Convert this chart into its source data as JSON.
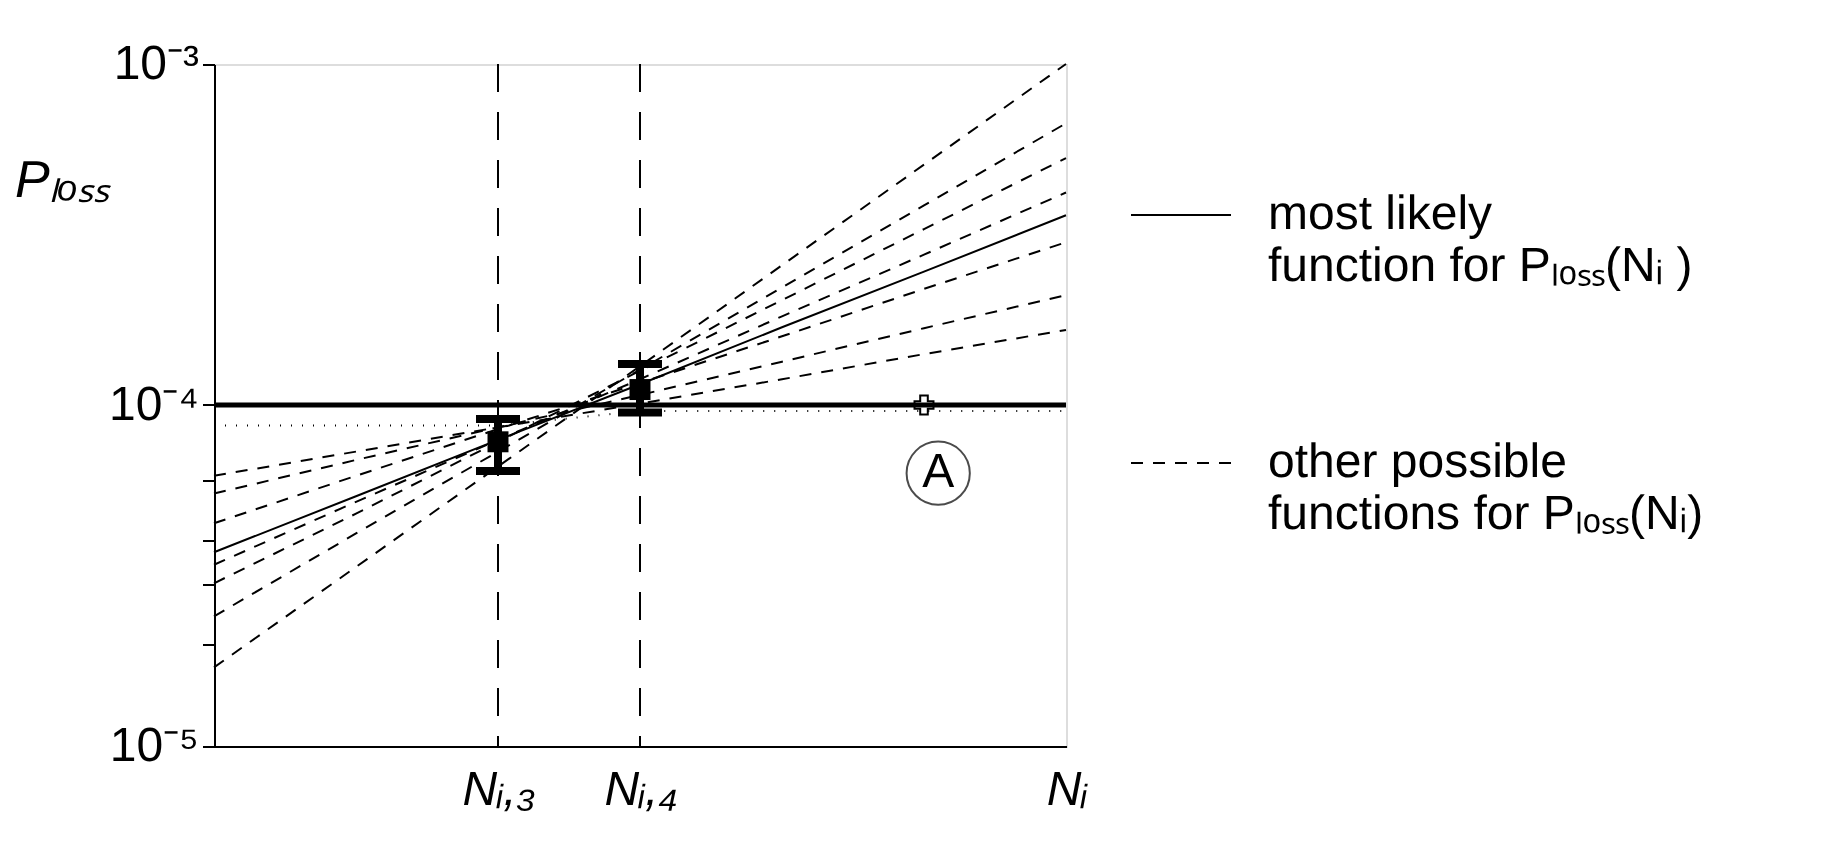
{
  "chart_data": {
    "type": "line",
    "ylabel": "Pₗₒₛₛ",
    "log": "y",
    "grid": false,
    "legend": "right",
    "categories": [
      null,
      null,
      "Nᵢ,₃",
      "Nᵢ,₄",
      null,
      null,
      "Nᵢ"
    ],
    "ylim": [
      1e-05,
      0.001
    ],
    "yticks": [
      {
        "value": 1e-05,
        "label": "10⁻⁵"
      },
      {
        "value": 2e-05,
        "label": null
      },
      {
        "value": 3e-05,
        "label": null
      },
      {
        "value": 4e-05,
        "label": null
      },
      {
        "value": 6e-05,
        "label": null
      },
      {
        "value": 0.0001,
        "label": "10⁻⁴"
      },
      {
        "value": 0.001,
        "label": "10⁻³"
      }
    ],
    "ref_lines": [
      {
        "axis": "y",
        "value": 0.0001,
        "color": "#000000",
        "line_style": "solid"
      },
      {
        "axis": "x",
        "value": "Nᵢ,₃",
        "color": "#000000",
        "line_style": "dashed"
      },
      {
        "axis": "x",
        "value": "Nᵢ,₄",
        "color": "#000000",
        "line_style": "dashed"
      }
    ],
    "annotations": [
      "A"
    ],
    "series": [
      {
        "name": "most likely function for Pₗₒₛₛ(Nᵢ )",
        "line_style": "solid",
        "color": "#000000",
        "values": [
          3.7e-05,
          5.4e-05,
          7.9e-05,
          0.000115,
          0.000169,
          0.000246,
          0.00036
        ]
      },
      {
        "name": "other possible functions for Pₗₒₛₛ(Nᵢ)",
        "line_style": "dashed",
        "color": "#000000",
        "values": [
          6.2e-05,
          7.3e-05,
          8.6e-05,
          0.000101,
          0.000119,
          0.000141,
          0.000166
        ]
      },
      {
        "line_style": "dashed",
        "color": "#000000",
        "values": [
          5.5e-05,
          6.9e-05,
          8.6e-05,
          0.000107,
          0.000134,
          0.000168,
          0.00021
        ]
      },
      {
        "line_style": "dashed",
        "color": "#000000",
        "values": [
          4.5e-05,
          6.2e-05,
          8.5e-05,
          0.000116,
          0.000159,
          0.000219,
          0.0003
        ]
      },
      {
        "line_style": "dashed",
        "color": "#000000",
        "values": [
          3.4e-05,
          5.2e-05,
          7.9e-05,
          0.000119,
          0.000182,
          0.000276,
          0.00042
        ]
      },
      {
        "line_style": "dashed",
        "color": "#000000",
        "values": [
          3e-05,
          4.8e-05,
          7.8e-05,
          0.000126,
          0.000203,
          0.000328,
          0.00053
        ]
      },
      {
        "line_style": "dashed",
        "color": "#000000",
        "values": [
          2.4e-05,
          4.2e-05,
          7.3e-05,
          0.000127,
          0.000221,
          0.000385,
          0.00067
        ]
      },
      {
        "line_style": "dashed",
        "color": "#000000",
        "values": [
          1.7e-05,
          3.35e-05,
          6.6e-05,
          0.00013,
          0.000257,
          0.000507,
          0.001
        ]
      },
      {
        "line_style": "dotted",
        "color": "#000000",
        "values": [
          8.7e-05,
          8.7e-05,
          8.7e-05,
          9.6e-05,
          9.6e-05,
          9.6e-05,
          9.6e-05
        ]
      },
      {
        "type": "scatter",
        "marker": "square",
        "color": "#000000",
        "values": [
          null,
          null,
          7.8e-05,
          0.000111,
          null,
          null,
          null
        ],
        "errors": [
          null,
          null,
          [
            6.4e-05,
            9.1e-05
          ],
          [
            9.5e-05,
            0.000132
          ],
          null,
          null,
          null
        ]
      },
      {
        "type": "scatter",
        "marker": "cross",
        "color": "#000000",
        "values": [
          null,
          null,
          null,
          null,
          null,
          0.0001,
          null
        ]
      }
    ]
  }
}
